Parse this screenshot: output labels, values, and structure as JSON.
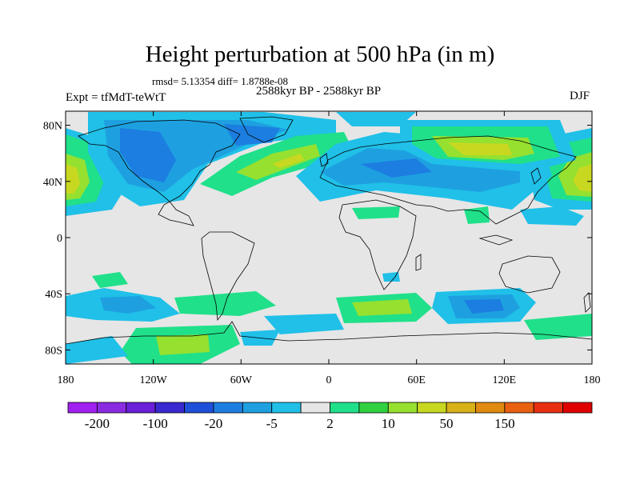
{
  "title": "Height perturbation at 500 hPa (in m)",
  "stats": "rmsd= 5.13354 diff= 1.8788e-08",
  "left_label": "Expt = tfMdT-teWtT",
  "center_label": "2588kyr BP - 2588kyr BP",
  "right_label": "DJF",
  "lat_labels": [
    "80N",
    "40N",
    "0",
    "40S",
    "80S"
  ],
  "lat_values": [
    80,
    40,
    0,
    -40,
    -80
  ],
  "lon_labels": [
    "180",
    "120W",
    "60W",
    "0",
    "60E",
    "120E",
    "180"
  ],
  "lon_values": [
    -180,
    -120,
    -60,
    0,
    60,
    120,
    180
  ],
  "lat_range": [
    -90,
    90
  ],
  "lon_range": [
    -180,
    180
  ],
  "colorbar": {
    "colors": [
      "#a020f0",
      "#8a2be2",
      "#6a1fd8",
      "#3a28d0",
      "#1e4fd8",
      "#1c7ee0",
      "#1ea0e0",
      "#20c0e8",
      "#e6e6e6",
      "#20e08a",
      "#30d040",
      "#96e030",
      "#c8d820",
      "#d8b018",
      "#e08a10",
      "#e86010",
      "#e83010",
      "#e00000"
    ],
    "labels": [
      "-200",
      "-100",
      "-20",
      "-5",
      "2",
      "10",
      "50",
      "150"
    ],
    "label_positions": [
      1,
      3,
      5,
      7,
      9,
      11,
      13,
      15
    ]
  },
  "map_colors": {
    "background": "#e6e6e6",
    "coast": "#000000"
  }
}
